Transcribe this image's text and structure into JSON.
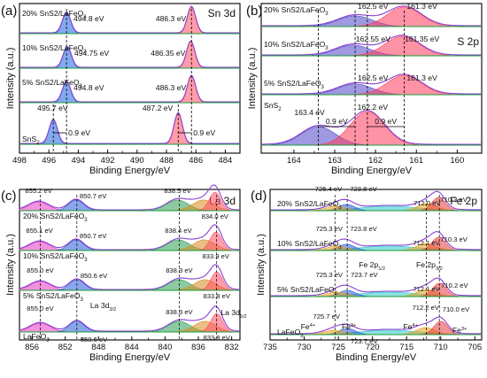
{
  "chart_data": [
    {
      "type": "line",
      "panel_label": "(a)",
      "element_label": "Sn 3d",
      "xlabel": "Binding Energy/eV",
      "ylabel": "Intensity (a.u.)",
      "xlim": [
        498,
        483
      ],
      "ylim": [
        0,
        4
      ],
      "xticks": [
        498,
        496,
        494,
        492,
        490,
        488,
        486,
        484
      ],
      "fill_colors": [
        "#1e63e0",
        "#ff4d62"
      ],
      "sample_labels": [
        "20% SnS2/LaFeO3",
        "10% SnS2/LaFeO3",
        "5% SnS2/LaFeO3",
        "SnS2"
      ],
      "peaks_3d32": [
        "494.8 eV",
        "494.75 eV",
        "494.8 eV",
        "495.7 eV"
      ],
      "peaks_3d52": [
        "486.3 eV",
        "486.35 eV",
        "486.3 eV",
        "487.2 eV"
      ],
      "peak_x_32": [
        494.8,
        494.75,
        494.8,
        495.7
      ],
      "peak_x_52": [
        486.3,
        486.35,
        486.3,
        487.2
      ],
      "shift_labels": [
        "0.9 eV",
        "0.9 eV"
      ]
    },
    {
      "type": "line",
      "panel_label": "(b)",
      "element_label": "S 2p",
      "xlabel": "Binding Energy/eV",
      "ylabel": "Intensity (a.u.)",
      "xlim": [
        164.8,
        159.4
      ],
      "ylim": [
        0,
        4
      ],
      "xticks": [
        164,
        163,
        162,
        161,
        160
      ],
      "fill_colors": [
        "#4f46c8",
        "#ff3b5c"
      ],
      "sample_labels": [
        "20% SnS2/LaFeO3",
        "10% SnS2/LaFeO3",
        "5% SnS2/LaFeO3",
        "SnS2"
      ],
      "peaks_2p12": [
        "162.5 eV",
        "162.55 eV",
        "162.5 eV",
        "163.4 eV"
      ],
      "peaks_2p32": [
        "161.3 eV",
        "161.35 eV",
        "161.3 eV",
        "162.2 eV"
      ],
      "peak_x_2p12": [
        162.5,
        162.55,
        162.5,
        163.4
      ],
      "peak_x_2p32": [
        161.3,
        161.35,
        161.3,
        162.2
      ],
      "shift_labels": [
        "0.9 eV",
        "0.9 eV"
      ]
    },
    {
      "type": "line",
      "panel_label": "(c)",
      "element_label": "La 3d",
      "xlabel": "Binding Energy/eV",
      "ylabel": "Intensity (a.u.)",
      "xlim": [
        857.5,
        831
      ],
      "ylim": [
        0,
        4
      ],
      "xticks": [
        856,
        852,
        848,
        844,
        840,
        836,
        832
      ],
      "fill_colors": [
        "#e63bc2",
        "#2a5bd7",
        "#2e9e55",
        "#d98b1e",
        "#ff4d62"
      ],
      "sample_labels": [
        "20% SnS2/LaFeO3",
        "10% SnS2/LaFeO3",
        "5% SnS2/LaFeO3",
        "LaFeO3"
      ],
      "spin_labels": [
        "La 3d3/2",
        "La 3d5/2"
      ],
      "peak_sets": [
        [
          "855.2 eV",
          "850.7 eV",
          "838.5 eV",
          "834.0 eV"
        ],
        [
          "855.1 eV",
          "850.7 eV",
          "838.4 eV",
          "833.9 eV"
        ],
        [
          "855.0 eV",
          "850.6 eV",
          "838.3 eV",
          "833.8 eV"
        ],
        [
          "855.0 eV",
          "850.6 eV",
          "838.3 eV",
          "833.8 eV"
        ]
      ],
      "peak_x": [
        [
          855.2,
          850.7,
          838.5,
          834.0
        ],
        [
          855.1,
          850.7,
          838.4,
          833.9
        ],
        [
          855.0,
          850.6,
          838.3,
          833.8
        ],
        [
          855.0,
          850.6,
          838.3,
          833.8
        ]
      ]
    },
    {
      "type": "line",
      "panel_label": "(d)",
      "element_label": "Fe 2p",
      "xlabel": "Binding Energy/eV",
      "ylabel": "Intensity (a.u.)",
      "xlim": [
        735,
        704
      ],
      "ylim": [
        0,
        4
      ],
      "xticks": [
        735,
        730,
        725,
        720,
        715,
        710,
        705
      ],
      "fill_colors": [
        "#2ec9c9",
        "#2a5bd7",
        "#e6a31e",
        "#e63b3b"
      ],
      "sample_labels": [
        "20% SnS2/LaFeO3",
        "10% SnS2/LaFeO3",
        "5% SnS2/LaFeO3",
        "LaFeO3"
      ],
      "spin_labels": [
        "Fe 2p1/2",
        "Fe 2p3/2"
      ],
      "ox_labels": [
        "Fe4+",
        "Fe3+",
        "Fe4+",
        "Fe3+"
      ],
      "peak_sets": [
        [
          "725.4 eV",
          "723.8 eV",
          "712.0 eV",
          "710.3 eV"
        ],
        [
          "725.3 eV",
          "723.8 eV",
          "712.1 eV",
          "710.3 eV"
        ],
        [
          "725.3 eV",
          "723.7 eV",
          "712.1 eV",
          "710.2 eV"
        ],
        [
          "725.7 eV",
          "723.7 eV",
          "712.2 eV",
          "710.0 eV"
        ]
      ],
      "peak_x": [
        [
          725.4,
          723.8,
          712.0,
          710.3
        ],
        [
          725.3,
          723.8,
          712.1,
          710.3
        ],
        [
          725.3,
          723.7,
          712.1,
          710.2
        ],
        [
          725.7,
          723.7,
          712.2,
          710.0
        ]
      ]
    }
  ]
}
